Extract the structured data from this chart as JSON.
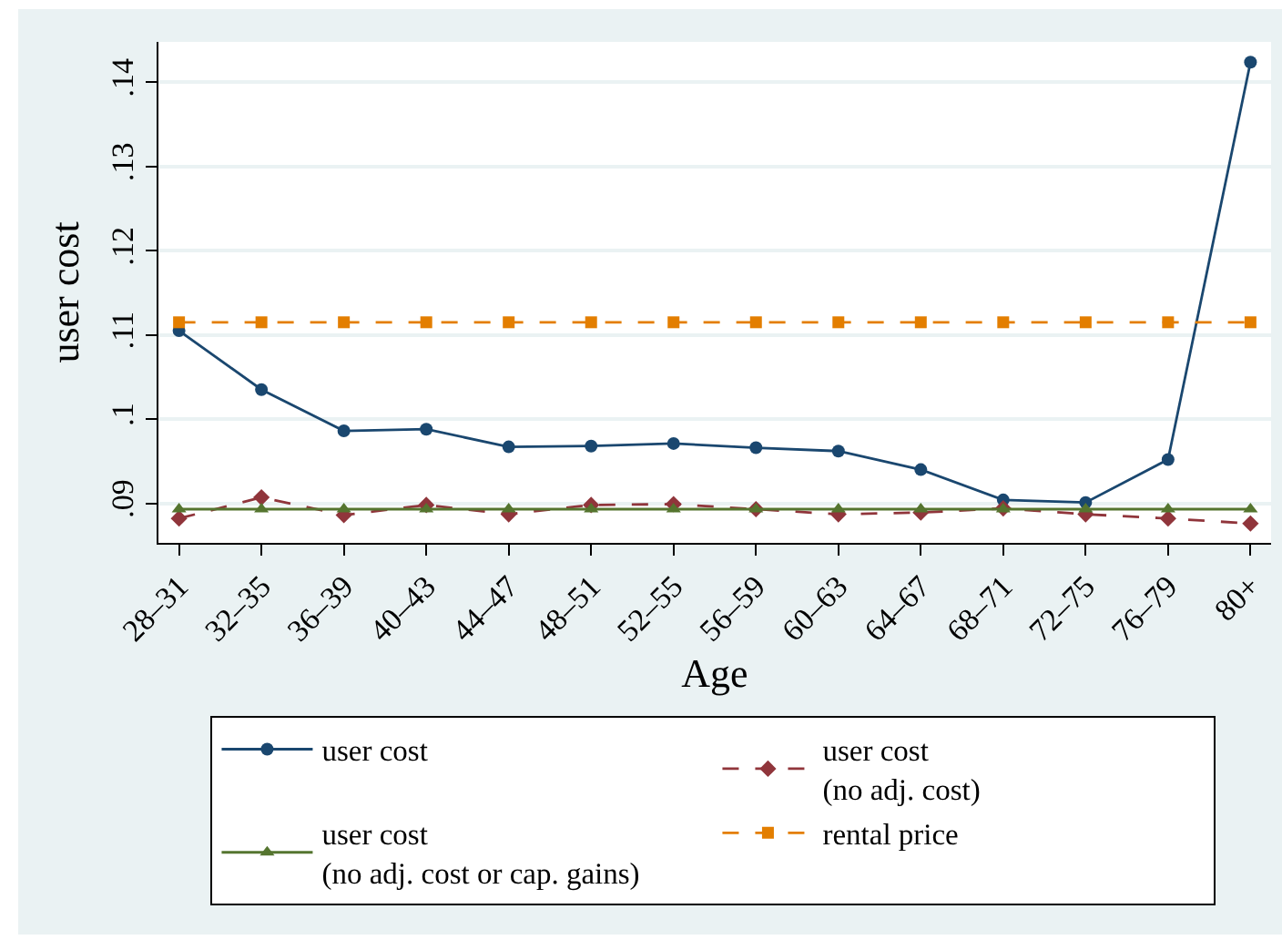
{
  "chart_data": {
    "type": "line",
    "xlabel": "Age",
    "ylabel": "user cost",
    "categories": [
      "28–31",
      "32–35",
      "36–39",
      "40–43",
      "44–47",
      "48–51",
      "52–55",
      "56–59",
      "60–63",
      "64–67",
      "68–71",
      "72–75",
      "76–79",
      "80+"
    ],
    "series": [
      {
        "name": "user cost",
        "color": "#1a476f",
        "marker": "circle",
        "line_style": "solid",
        "values": [
          0.1105,
          0.1035,
          0.0986,
          0.0988,
          0.0967,
          0.0968,
          0.0971,
          0.0966,
          0.0962,
          0.094,
          0.0904,
          0.0901,
          0.0952,
          0.1424
        ]
      },
      {
        "name": "user cost\n(no adj. cost)",
        "color": "#90353b",
        "marker": "diamond",
        "line_style": "dashed",
        "values": [
          0.0882,
          0.0907,
          0.0886,
          0.0898,
          0.0887,
          0.0898,
          0.0899,
          0.0893,
          0.0887,
          0.0889,
          0.0894,
          0.0887,
          0.0882,
          0.0876
        ]
      },
      {
        "name": "user cost\n(no adj. cost or cap. gains)",
        "color": "#55752f",
        "marker": "triangle",
        "line_style": "solid",
        "values": [
          0.0893,
          0.0893,
          0.0893,
          0.0893,
          0.0893,
          0.0893,
          0.0893,
          0.0893,
          0.0893,
          0.0893,
          0.0893,
          0.0893,
          0.0893,
          0.0893
        ]
      },
      {
        "name": "rental price",
        "color": "#e37e00",
        "marker": "square",
        "line_style": "dashed",
        "values": [
          0.1115,
          0.1115,
          0.1115,
          0.1115,
          0.1115,
          0.1115,
          0.1115,
          0.1115,
          0.1115,
          0.1115,
          0.1115,
          0.1115,
          0.1115,
          0.1115
        ]
      }
    ],
    "ylim": [
      0.0853,
      0.1448
    ],
    "yticks": [
      {
        "value": 0.09,
        "label": ".09"
      },
      {
        "value": 0.1,
        "label": ".1"
      },
      {
        "value": 0.11,
        "label": ".11"
      },
      {
        "value": 0.12,
        "label": ".12"
      },
      {
        "value": 0.13,
        "label": ".13"
      },
      {
        "value": 0.14,
        "label": ".14"
      }
    ],
    "grid": "y",
    "legend": "bottom"
  }
}
